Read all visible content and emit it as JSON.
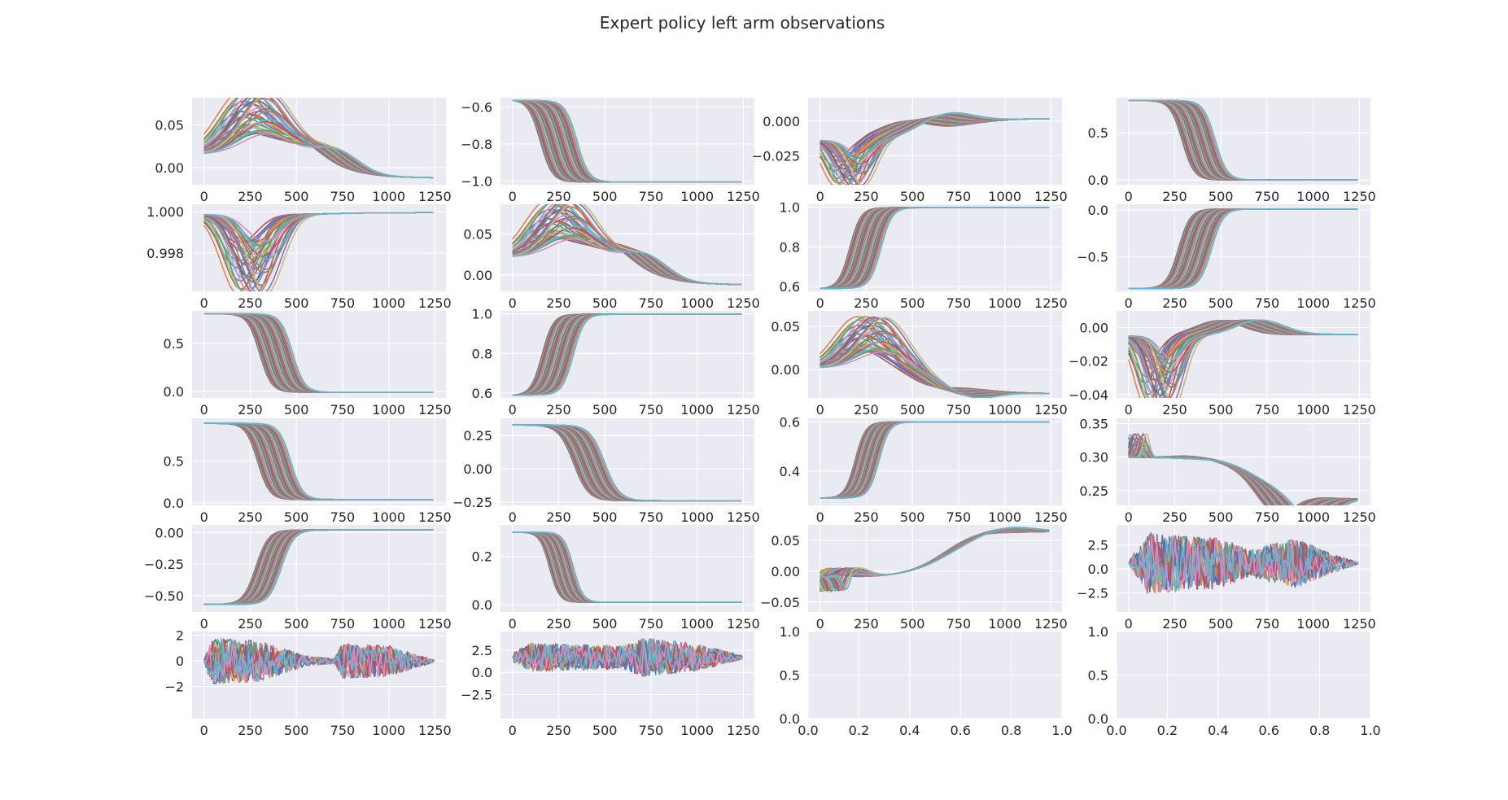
{
  "title": "Expert policy left arm observations",
  "palette": [
    "#4c72b0",
    "#dd8452",
    "#55a868",
    "#c44e52",
    "#8172b3",
    "#937860",
    "#da8bc3",
    "#8c8c8c",
    "#ccb974",
    "#64b5cd"
  ],
  "chart_data": {
    "type": "line",
    "grid": true,
    "series_count": 40,
    "x_ticks": [
      "0",
      "250",
      "500",
      "750",
      "1000",
      "1250"
    ],
    "x_ticks_empty": [
      "0.0",
      "0.2",
      "0.4",
      "0.6",
      "0.8",
      "1.0"
    ],
    "y_ticks_empty": [
      "0.0",
      "0.5",
      "1.0"
    ],
    "xlim": [
      -65,
      1310
    ],
    "subplots": [
      {
        "name": "r1c1",
        "kind": "lines",
        "ylim": [
          -0.02,
          0.082
        ],
        "yticks": [
          "0.05",
          "0.00"
        ],
        "ytick_values": [
          0.05,
          0.0
        ],
        "start": 0.016,
        "end": -0.012,
        "features": [
          {
            "c": 280,
            "w": 190,
            "a": 0.062
          },
          {
            "c": 620,
            "w": 160,
            "a": 0.02
          }
        ]
      },
      {
        "name": "r1c2",
        "kind": "sigmoid",
        "ylim": [
          -1.02,
          -0.55
        ],
        "yticks": [
          "-0.6",
          "-0.8",
          "-1.0"
        ],
        "ytick_values": [
          -0.6,
          -0.8,
          -1.0
        ],
        "start": -0.565,
        "end": -1.005,
        "mid": [
          150,
          350
        ],
        "width": 160
      },
      {
        "name": "r1c3",
        "kind": "lines",
        "ylim": [
          -0.046,
          0.017
        ],
        "yticks": [
          "0.000",
          "-0.025"
        ],
        "ytick_values": [
          0.0,
          -0.025
        ],
        "start": -0.014,
        "end": 0.002,
        "features": [
          {
            "c": 160,
            "w": 100,
            "a": -0.028
          },
          {
            "c": 560,
            "w": 200,
            "a": 0.012
          }
        ]
      },
      {
        "name": "r1c4",
        "kind": "sigmoid",
        "ylim": [
          -0.05,
          0.87
        ],
        "yticks": [
          "0.5",
          "0.0"
        ],
        "ytick_values": [
          0.5,
          0.0
        ],
        "start": 0.84,
        "end": 0.0,
        "mid": [
          290,
          470
        ],
        "width": 160
      },
      {
        "name": "r2c1",
        "kind": "lines",
        "ylim": [
          0.99615,
          1.00035
        ],
        "yticks": [
          "1.000",
          "0.998"
        ],
        "ytick_values": [
          1.0,
          0.998
        ],
        "start": 0.99985,
        "end": 0.99995,
        "features": [
          {
            "c": 260,
            "w": 130,
            "a": -0.0032
          }
        ]
      },
      {
        "name": "r2c2",
        "kind": "lines",
        "ylim": [
          -0.02,
          0.086
        ],
        "yticks": [
          "0.05",
          "0.00"
        ],
        "ytick_values": [
          0.05,
          0.0
        ],
        "start": 0.022,
        "end": -0.012,
        "features": [
          {
            "c": 270,
            "w": 180,
            "a": 0.058
          },
          {
            "c": 620,
            "w": 160,
            "a": 0.022
          }
        ]
      },
      {
        "name": "r2c3",
        "kind": "sigmoid",
        "ylim": [
          0.575,
          1.015
        ],
        "yticks": [
          "1.0",
          "0.8",
          "0.6"
        ],
        "ytick_values": [
          1.0,
          0.8,
          0.6
        ],
        "start": 0.59,
        "end": 0.998,
        "mid": [
          160,
          330
        ],
        "width": 150
      },
      {
        "name": "r2c4",
        "kind": "sigmoid",
        "ylim": [
          -0.87,
          0.06
        ],
        "yticks": [
          "0.0",
          "-0.5"
        ],
        "ytick_values": [
          0.0,
          -0.5
        ],
        "start": -0.84,
        "end": 0.01,
        "mid": [
          270,
          450
        ],
        "width": 160
      },
      {
        "name": "r3c1",
        "kind": "sigmoid",
        "ylim": [
          -0.07,
          0.84
        ],
        "yticks": [
          "0.5",
          "0.0"
        ],
        "ytick_values": [
          0.5,
          0.0
        ],
        "start": 0.81,
        "end": -0.01,
        "mid": [
          300,
          480
        ],
        "width": 160
      },
      {
        "name": "r3c2",
        "kind": "sigmoid",
        "ylim": [
          0.575,
          1.015
        ],
        "yticks": [
          "1.0",
          "0.8",
          "0.6"
        ],
        "ytick_values": [
          1.0,
          0.8,
          0.6
        ],
        "start": 0.59,
        "end": 0.998,
        "mid": [
          160,
          330
        ],
        "width": 150
      },
      {
        "name": "r3c3",
        "kind": "lines",
        "ylim": [
          -0.033,
          0.068
        ],
        "yticks": [
          "0.05",
          "0.00"
        ],
        "ytick_values": [
          0.05,
          0.0
        ],
        "start": 0.002,
        "end": -0.028,
        "features": [
          {
            "c": 280,
            "w": 180,
            "a": 0.05
          },
          {
            "c": 700,
            "w": 180,
            "a": -0.012
          }
        ]
      },
      {
        "name": "r3c4",
        "kind": "lines",
        "ylim": [
          -0.042,
          0.01
        ],
        "yticks": [
          "0.00",
          "-0.02",
          "-0.04"
        ],
        "ytick_values": [
          0.0,
          -0.02,
          -0.04
        ],
        "start": -0.005,
        "end": -0.004,
        "features": [
          {
            "c": 170,
            "w": 90,
            "a": -0.035
          },
          {
            "c": 600,
            "w": 180,
            "a": 0.009
          }
        ]
      },
      {
        "name": "r4c1",
        "kind": "sigmoid",
        "ylim": [
          -0.03,
          1.01
        ],
        "yticks": [
          "0.5",
          "0.0"
        ],
        "ytick_values": [
          0.5,
          0.0
        ],
        "start": 0.95,
        "end": 0.04,
        "mid": [
          290,
          470
        ],
        "width": 160
      },
      {
        "name": "r4c2",
        "kind": "sigmoid",
        "ylim": [
          -0.275,
          0.38
        ],
        "yticks": [
          "0.25",
          "0.00",
          "-0.25"
        ],
        "ytick_values": [
          0.25,
          0.0,
          -0.25
        ],
        "start": 0.33,
        "end": -0.24,
        "mid": [
          330,
          500
        ],
        "width": 200
      },
      {
        "name": "r4c3",
        "kind": "sigmoid",
        "ylim": [
          0.26,
          0.615
        ],
        "yticks": [
          "0.6",
          "0.4"
        ],
        "ytick_values": [
          0.6,
          0.4
        ],
        "start": 0.29,
        "end": 0.6,
        "mid": [
          190,
          320
        ],
        "width": 140
      },
      {
        "name": "r4c4",
        "kind": "lines",
        "ylim": [
          0.228,
          0.358
        ],
        "yticks": [
          "0.35",
          "0.30",
          "0.25"
        ],
        "ytick_values": [
          0.35,
          0.3,
          0.25
        ],
        "start": 0.3,
        "end": 0.237,
        "features": [
          {
            "c": 20,
            "w": 25,
            "a": 0.03
          },
          {
            "c": 900,
            "w": 140,
            "a": -0.04
          },
          {
            "c": 450,
            "w": 150,
            "a": 0.004
          }
        ]
      },
      {
        "name": "r5c1",
        "kind": "sigmoid",
        "ylim": [
          -0.63,
          0.06
        ],
        "yticks": [
          "0.00",
          "-0.25",
          "-0.50"
        ],
        "ytick_values": [
          0.0,
          -0.25,
          -0.5
        ],
        "start": -0.57,
        "end": 0.02,
        "mid": [
          280,
          420
        ],
        "width": 170
      },
      {
        "name": "r5c2",
        "kind": "sigmoid",
        "ylim": [
          -0.03,
          0.33
        ],
        "yticks": [
          "0.2",
          "0.0"
        ],
        "ytick_values": [
          0.2,
          0.0
        ],
        "start": 0.3,
        "end": 0.01,
        "mid": [
          200,
          330
        ],
        "width": 130
      },
      {
        "name": "r5c3",
        "kind": "lines",
        "ylim": [
          -0.066,
          0.075
        ],
        "yticks": [
          "0.05",
          "0.00",
          "-0.05"
        ],
        "ytick_values": [
          0.05,
          0.0,
          -0.05
        ],
        "start": -0.01,
        "end": 0.065,
        "features": [
          {
            "c": 130,
            "w": 90,
            "a": 0.012
          },
          {
            "c": 30,
            "w": 25,
            "a": -0.025
          },
          {
            "c": 900,
            "w": 200,
            "a": 0.01
          }
        ]
      },
      {
        "name": "r5c4",
        "kind": "noise",
        "ylim": [
          -4.5,
          4.6
        ],
        "yticks": [
          "2.5",
          "0.0",
          "-2.5"
        ],
        "ytick_values": [
          2.5,
          0.0,
          -2.5
        ],
        "base": 0.6,
        "env": [
          [
            0,
            0.2
          ],
          [
            100,
            3.2
          ],
          [
            500,
            2.6
          ],
          [
            650,
            1.4
          ],
          [
            900,
            2.6
          ],
          [
            1100,
            1.0
          ],
          [
            1240,
            0.1
          ]
        ]
      },
      {
        "name": "r6c1",
        "kind": "noise",
        "ylim": [
          -4.5,
          2.3
        ],
        "yticks": [
          "2",
          "0",
          "-2"
        ],
        "ytick_values": [
          2,
          0,
          -2
        ],
        "base": 0.0,
        "env": [
          [
            0,
            0.3
          ],
          [
            40,
            1.8
          ],
          [
            300,
            1.6
          ],
          [
            550,
            0.4
          ],
          [
            700,
            0.2
          ],
          [
            750,
            1.4
          ],
          [
            1000,
            1.2
          ],
          [
            1240,
            0.1
          ]
        ]
      },
      {
        "name": "r6c2",
        "kind": "noise",
        "ylim": [
          -5.2,
          4.6
        ],
        "yticks": [
          "2.5",
          "0.0",
          "-2.5"
        ],
        "ytick_values": [
          2.5,
          0.0,
          -2.5
        ],
        "base": 1.7,
        "env": [
          [
            0,
            0.5
          ],
          [
            100,
            1.6
          ],
          [
            600,
            1.3
          ],
          [
            700,
            2.2
          ],
          [
            1000,
            1.5
          ],
          [
            1240,
            0.2
          ]
        ]
      },
      {
        "name": "r6c3",
        "kind": "empty",
        "xticks": [
          "0.0",
          "0.2",
          "0.4",
          "0.6",
          "0.8",
          "1.0"
        ],
        "yticks": [
          "1.0",
          "0.5",
          "0.0"
        ]
      },
      {
        "name": "r6c4",
        "kind": "empty",
        "xticks": [
          "0.0",
          "0.2",
          "0.4",
          "0.6",
          "0.8",
          "1.0"
        ],
        "yticks": [
          "1.0",
          "0.5",
          "0.0"
        ]
      }
    ]
  }
}
